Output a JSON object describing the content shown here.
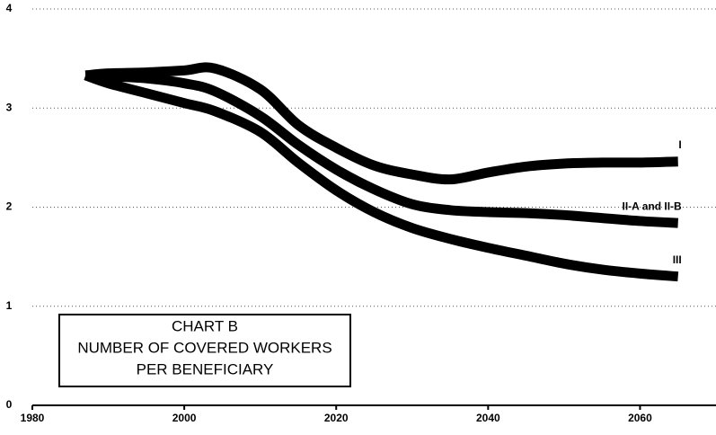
{
  "chart_data": {
    "type": "line",
    "title": [
      "CHART B",
      "NUMBER OF COVERED WORKERS",
      "PER BENEFICIARY"
    ],
    "x": [
      1987,
      1990,
      1995,
      2000,
      2004,
      2010,
      2015,
      2020,
      2025,
      2030,
      2035,
      2040,
      2045,
      2050,
      2055,
      2060,
      2065
    ],
    "series": [
      {
        "name": "I",
        "color": "#000000",
        "values": [
          3.33,
          3.35,
          3.36,
          3.38,
          3.4,
          3.19,
          2.83,
          2.6,
          2.42,
          2.33,
          2.28,
          2.35,
          2.41,
          2.44,
          2.45,
          2.45,
          2.46
        ]
      },
      {
        "name": "II-A and II-B",
        "color": "#000000",
        "values": [
          3.33,
          3.32,
          3.3,
          3.25,
          3.17,
          2.92,
          2.63,
          2.38,
          2.18,
          2.03,
          1.97,
          1.95,
          1.94,
          1.92,
          1.89,
          1.86,
          1.84
        ]
      },
      {
        "name": "III",
        "color": "#000000",
        "values": [
          3.33,
          3.25,
          3.15,
          3.05,
          2.97,
          2.76,
          2.45,
          2.17,
          1.95,
          1.79,
          1.68,
          1.59,
          1.51,
          1.43,
          1.37,
          1.33,
          1.3
        ]
      }
    ],
    "xlim": [
      1980,
      2070
    ],
    "xticks": [
      1980,
      2000,
      2020,
      2040,
      2060
    ],
    "ylim": [
      0,
      4
    ],
    "yticks": [
      0,
      1,
      2,
      3,
      4
    ],
    "grid": true
  }
}
